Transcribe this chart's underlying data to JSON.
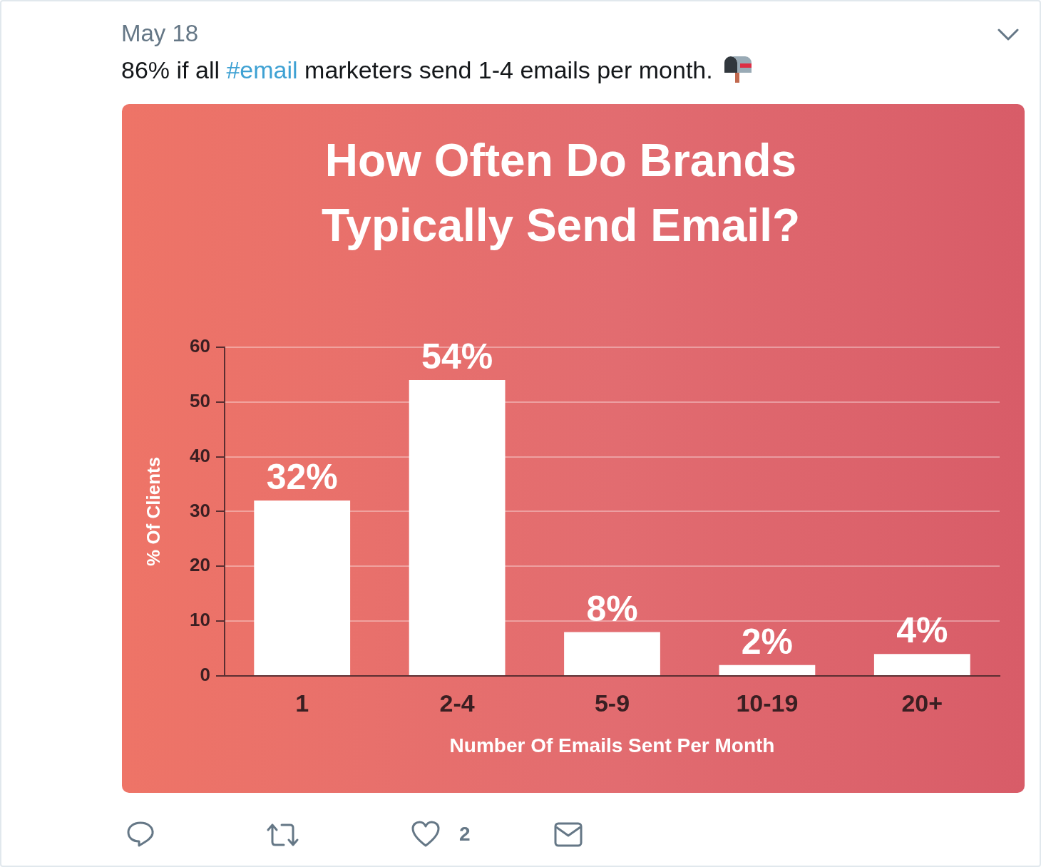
{
  "chart_data": {
    "type": "bar",
    "title": "How Often Do Brands Typically Send Email?",
    "xlabel": "Number Of Emails Sent Per Month",
    "ylabel": "% Of Clients",
    "categories": [
      "1",
      "2-4",
      "5-9",
      "10-19",
      "20+"
    ],
    "values": [
      32,
      54,
      8,
      2,
      4
    ],
    "color": "#ffffff",
    "value_labels": [
      "32%",
      "54%",
      "8%",
      "2%",
      "4%"
    ],
    "ylim": [
      0,
      60
    ],
    "yticks": [
      0,
      10,
      20,
      30,
      40,
      50,
      60
    ],
    "grid": "y",
    "annotations": [
      "May 18",
      "86% if all #email marketers send 1-4 emails per month.",
      "2"
    ]
  }
}
